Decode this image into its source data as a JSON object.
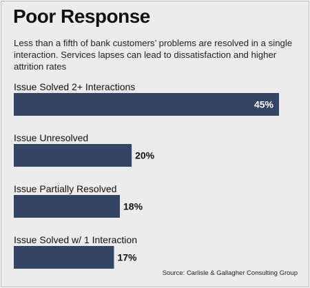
{
  "title": "Poor Response",
  "subtitle": "Less than a fifth of bank customers’ problems are resolved in a single interaction. Services lapses can lead to dissatisfaction and higher attrition rates",
  "source": "Source: Carlisle & Gallagher Consulting Group",
  "colors": {
    "bar": "#344563",
    "background": "#ececec",
    "text": "#111111",
    "inside_label": "#ffffff"
  },
  "chart_data": {
    "type": "bar",
    "orientation": "horizontal",
    "title": "Poor Response",
    "categories": [
      "Issue Solved 2+ Interactions",
      "Issue Unresolved",
      "Issue Partially Resolved",
      "Issue Solved w/ 1 Interaction"
    ],
    "values": [
      45,
      20,
      18,
      17
    ],
    "value_labels": [
      "45%",
      "20%",
      "18%",
      "17%"
    ],
    "unit": "%",
    "xlim": [
      0,
      50
    ],
    "grid": false,
    "legend": "none"
  }
}
